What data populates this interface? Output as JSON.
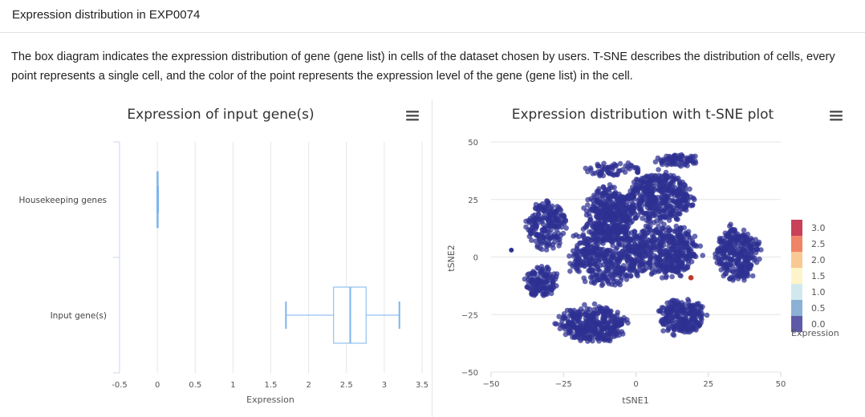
{
  "panel": {
    "title": "Expression distribution in  EXP0074",
    "description": "The box diagram indicates the expression distribution of gene (gene list) in cells of the dataset chosen by users. T-SNE describes the distribution of cells, every point represents a single cell, and the color of the point represents the expression level of the gene (gene list) in the cell."
  },
  "chart_data": [
    {
      "type": "box",
      "title": "Expression of input gene(s)",
      "xlabel": "Expression",
      "ylabel": "",
      "orientation": "horizontal",
      "xlim": [
        -0.5,
        3.5
      ],
      "xticks": [
        "-0.5",
        "0",
        "0.5",
        "1",
        "1.5",
        "2",
        "2.5",
        "3",
        "3.5"
      ],
      "grid": true,
      "categories": [
        "Housekeeping genes",
        "Input gene(s)"
      ],
      "boxes": [
        {
          "category": "Housekeeping genes",
          "min": 0.0,
          "q1": 0.0,
          "median": 0.0,
          "q3": 0.01,
          "max": 0.01
        },
        {
          "category": "Input gene(s)",
          "min": 1.7,
          "q1": 2.33,
          "median": 2.55,
          "q3": 2.76,
          "max": 3.2
        }
      ],
      "color": "#7cb5ec",
      "menu_icon": "hamburger-menu-icon"
    },
    {
      "type": "scatter",
      "title": "Expression distribution with t-SNE plot",
      "xlabel": "tSNE1",
      "ylabel": "tSNE2",
      "xlim": [
        -50,
        50
      ],
      "ylim": [
        -50,
        50
      ],
      "xticks": [
        "−50",
        "−25",
        "0",
        "25",
        "50"
      ],
      "yticks": [
        "50",
        "25",
        "0",
        "−25",
        "−50"
      ],
      "grid": true,
      "point_color": "#2e3192",
      "clusters": [
        {
          "cx": -9,
          "cy": 19,
          "rx": 9,
          "ry": 12,
          "n": 380
        },
        {
          "cx": 8,
          "cy": 26,
          "rx": 12,
          "ry": 11,
          "n": 420
        },
        {
          "cx": -31,
          "cy": 14,
          "rx": 7,
          "ry": 11,
          "n": 200
        },
        {
          "cx": -10,
          "cy": 1,
          "rx": 13,
          "ry": 14,
          "n": 460
        },
        {
          "cx": 10,
          "cy": 3,
          "rx": 12,
          "ry": 12,
          "n": 420
        },
        {
          "cx": 35,
          "cy": 2,
          "rx": 8,
          "ry": 12,
          "n": 300
        },
        {
          "cx": -33,
          "cy": -11,
          "rx": 6,
          "ry": 7,
          "n": 130
        },
        {
          "cx": -15,
          "cy": -29,
          "rx": 12,
          "ry": 8,
          "n": 340
        },
        {
          "cx": 16,
          "cy": -26,
          "rx": 8,
          "ry": 8,
          "n": 240
        },
        {
          "cx": 14,
          "cy": 42,
          "rx": 8,
          "ry": 2.5,
          "n": 70
        },
        {
          "cx": -8,
          "cy": 38,
          "rx": 10,
          "ry": 3,
          "n": 60
        }
      ],
      "highlight_point": {
        "x": 19,
        "y": -9,
        "color": "#c0392b"
      },
      "outlier_point": {
        "x": -43,
        "y": 3
      },
      "legend": {
        "title": "Expression",
        "placement": "right",
        "items": [
          {
            "label": "3.0",
            "color": "#c8405a"
          },
          {
            "label": "2.5",
            "color": "#ef8466"
          },
          {
            "label": "2.0",
            "color": "#f8c993"
          },
          {
            "label": "1.5",
            "color": "#fdf5c9"
          },
          {
            "label": "1.0",
            "color": "#d1e9ee"
          },
          {
            "label": "0.5",
            "color": "#8cb1d4"
          },
          {
            "label": "0.0",
            "color": "#5e5aa8"
          }
        ]
      },
      "menu_icon": "hamburger-menu-icon"
    }
  ]
}
